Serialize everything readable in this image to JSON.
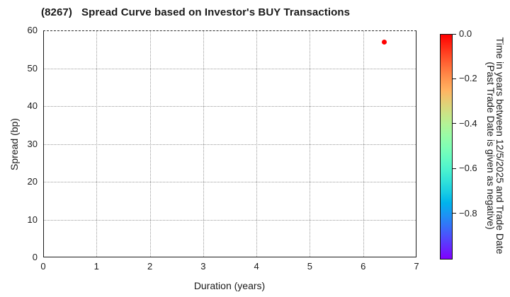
{
  "title": {
    "ticker": "(8267)",
    "text": "Spread Curve based on Investor's BUY Transactions"
  },
  "chart_data": {
    "type": "scatter",
    "title": "(8267) Spread Curve based on Investor's BUY Transactions",
    "xlabel": "Duration (years)",
    "ylabel": "Spread (bp)",
    "xlim": [
      0,
      7
    ],
    "ylim": [
      0,
      60
    ],
    "xticks": [
      0,
      1,
      2,
      3,
      4,
      5,
      6,
      7
    ],
    "xtick_labels": [
      "0",
      "1",
      "2",
      "3",
      "4",
      "5",
      "6",
      "7"
    ],
    "yticks": [
      0,
      10,
      20,
      30,
      40,
      50,
      60
    ],
    "ytick_labels": [
      "0",
      "10",
      "20",
      "30",
      "40",
      "50",
      "60"
    ],
    "grid": true,
    "grid_style": "dotted",
    "legend": "none",
    "points": [
      {
        "x": 6.4,
        "y": 57.0,
        "color_value": 0.0,
        "color": "#ff0000"
      }
    ],
    "colorbar": {
      "colormap": "rainbow",
      "range_top": 0.0,
      "range_bottom": -1.0,
      "tick_values": [
        0.0,
        -0.2,
        -0.4,
        -0.6,
        -0.8
      ],
      "tick_labels": [
        "0.0",
        "−0.2",
        "−0.4",
        "−0.6",
        "−0.8"
      ],
      "label_line1": "Time in years between 12/5/2025 and Trade Date",
      "label_line2": "(Past Trade Date is given as negative)"
    }
  },
  "colors": {
    "background": "#ffffff",
    "text": "#1a1a1a",
    "spine": "#1a1a1a",
    "grid": "#9a9a9a",
    "point": "#ff0000"
  }
}
